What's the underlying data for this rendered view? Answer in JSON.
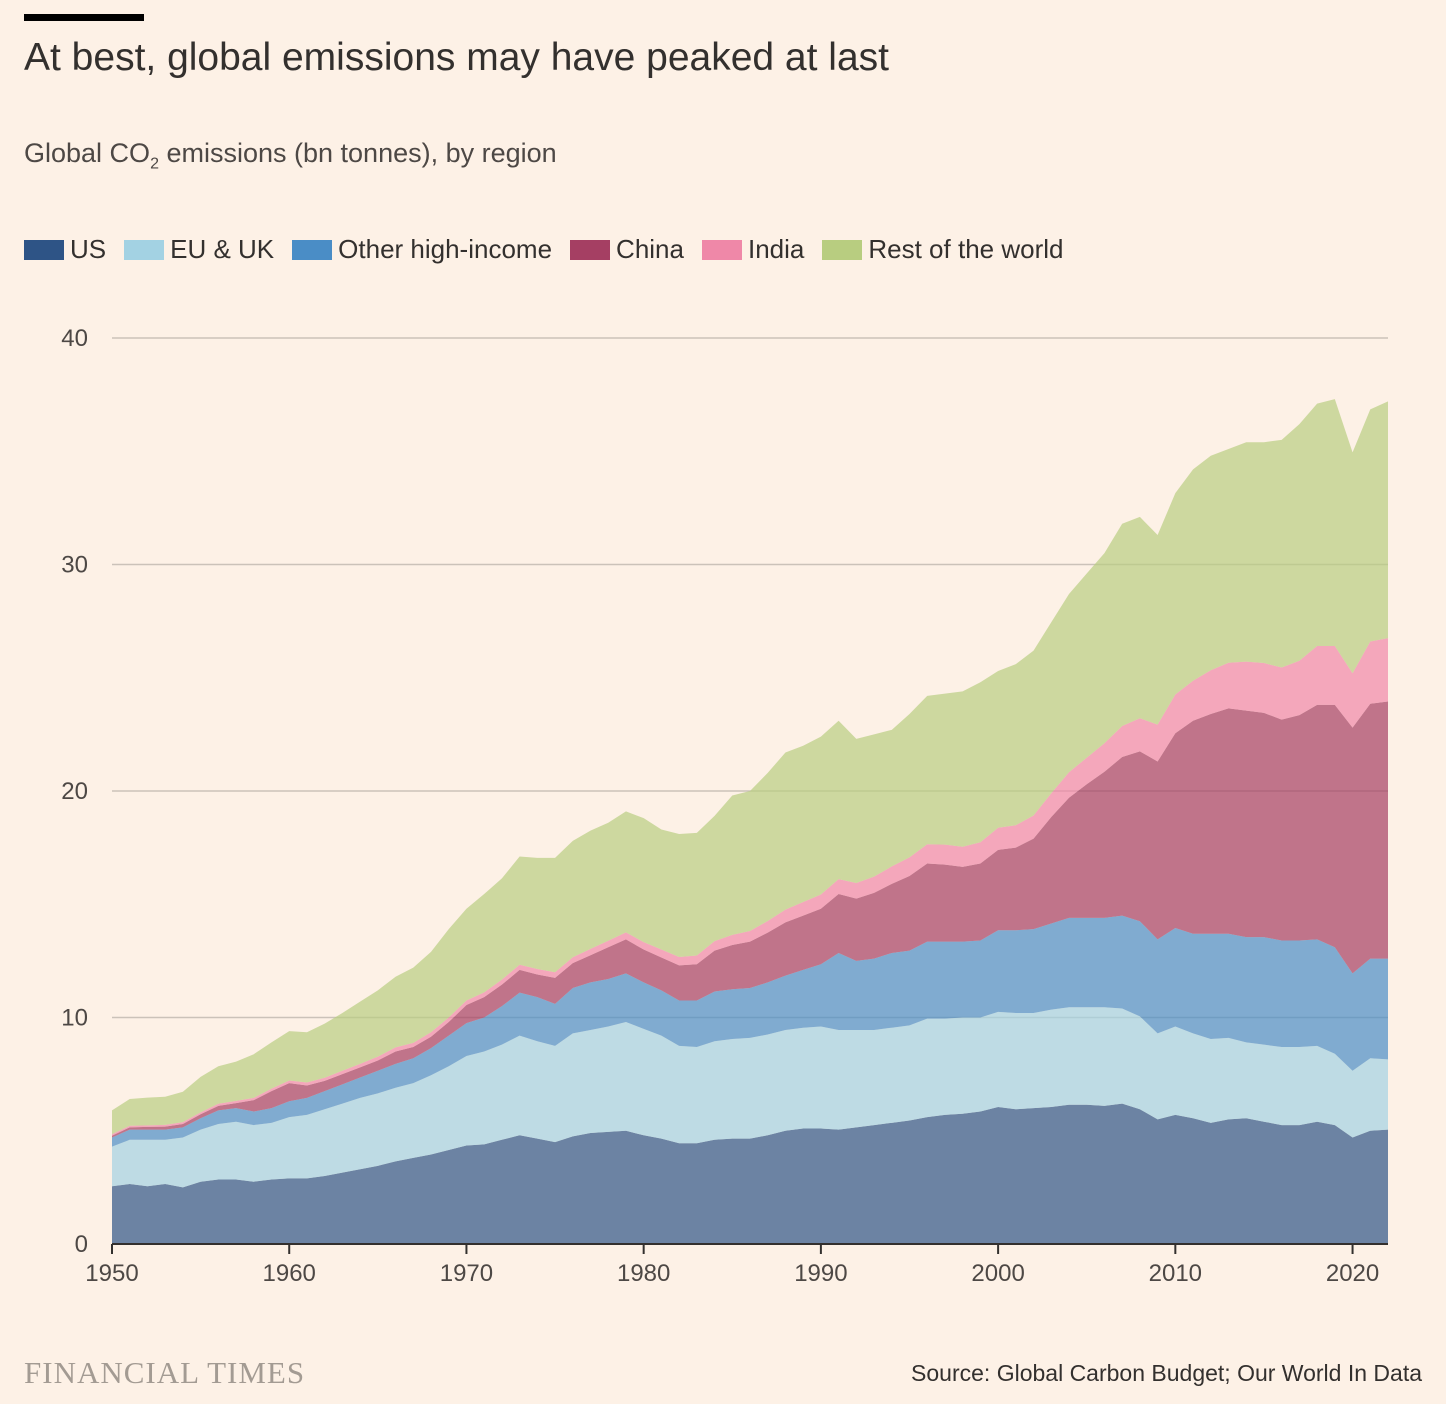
{
  "header": {
    "title": "At best, global emissions may have peaked at last",
    "subtitle_prefix": "Global CO",
    "subtitle_sub": "2",
    "subtitle_suffix": " emissions (bn tonnes), by region"
  },
  "legend": [
    {
      "label": "US",
      "color": "#2e5486"
    },
    {
      "label": "EU & UK",
      "color": "#a3d2e3"
    },
    {
      "label": "Other high-income",
      "color": "#4a8dc6"
    },
    {
      "label": "China",
      "color": "#a53f63"
    },
    {
      "label": "India",
      "color": "#ef88a8"
    },
    {
      "label": "Rest of the world",
      "color": "#b8cd80"
    }
  ],
  "footer": {
    "brand": "FINANCIAL TIMES",
    "source": "Source: Global Carbon Budget; Our World In Data"
  },
  "chart_data": {
    "type": "area",
    "stacked": true,
    "x": [
      1950,
      1951,
      1952,
      1953,
      1954,
      1955,
      1956,
      1957,
      1958,
      1959,
      1960,
      1961,
      1962,
      1963,
      1964,
      1965,
      1966,
      1967,
      1968,
      1969,
      1970,
      1971,
      1972,
      1973,
      1974,
      1975,
      1976,
      1977,
      1978,
      1979,
      1980,
      1981,
      1982,
      1983,
      1984,
      1985,
      1986,
      1987,
      1988,
      1989,
      1990,
      1991,
      1992,
      1993,
      1994,
      1995,
      1996,
      1997,
      1998,
      1999,
      2000,
      2001,
      2002,
      2003,
      2004,
      2005,
      2006,
      2007,
      2008,
      2009,
      2010,
      2011,
      2012,
      2013,
      2014,
      2015,
      2016,
      2017,
      2018,
      2019,
      2020,
      2021,
      2022
    ],
    "xticks": [
      1950,
      1960,
      1970,
      1980,
      1990,
      2000,
      2010,
      2020
    ],
    "ylim": [
      0,
      40
    ],
    "yticks": [
      0,
      10,
      20,
      30,
      40
    ],
    "grid": true,
    "series": [
      {
        "name": "US",
        "color": "#2e5486",
        "values": [
          2.55,
          2.65,
          2.55,
          2.65,
          2.5,
          2.75,
          2.85,
          2.85,
          2.75,
          2.85,
          2.9,
          2.9,
          3.0,
          3.15,
          3.3,
          3.45,
          3.65,
          3.8,
          3.95,
          4.15,
          4.35,
          4.4,
          4.6,
          4.8,
          4.65,
          4.5,
          4.75,
          4.9,
          4.95,
          5.0,
          4.8,
          4.65,
          4.45,
          4.45,
          4.6,
          4.65,
          4.65,
          4.8,
          5.0,
          5.1,
          5.1,
          5.05,
          5.15,
          5.25,
          5.35,
          5.45,
          5.6,
          5.7,
          5.75,
          5.85,
          6.05,
          5.95,
          6.0,
          6.05,
          6.15,
          6.15,
          6.1,
          6.2,
          5.95,
          5.5,
          5.7,
          5.55,
          5.35,
          5.5,
          5.55,
          5.4,
          5.25,
          5.25,
          5.4,
          5.25,
          4.7,
          5.0,
          5.05
        ]
      },
      {
        "name": "EU & UK",
        "color": "#a3d2e3",
        "values": [
          1.75,
          1.95,
          2.05,
          1.95,
          2.2,
          2.3,
          2.45,
          2.55,
          2.5,
          2.5,
          2.7,
          2.8,
          2.95,
          3.05,
          3.15,
          3.2,
          3.25,
          3.3,
          3.5,
          3.7,
          3.95,
          4.1,
          4.2,
          4.4,
          4.3,
          4.25,
          4.55,
          4.55,
          4.65,
          4.8,
          4.7,
          4.55,
          4.3,
          4.25,
          4.35,
          4.4,
          4.45,
          4.45,
          4.45,
          4.45,
          4.5,
          4.4,
          4.3,
          4.2,
          4.2,
          4.2,
          4.35,
          4.25,
          4.25,
          4.15,
          4.2,
          4.25,
          4.2,
          4.3,
          4.3,
          4.3,
          4.35,
          4.2,
          4.1,
          3.8,
          3.9,
          3.75,
          3.7,
          3.6,
          3.35,
          3.4,
          3.45,
          3.45,
          3.35,
          3.15,
          2.95,
          3.2,
          3.1
        ]
      },
      {
        "name": "Other high-income",
        "color": "#4a8dc6",
        "values": [
          0.4,
          0.45,
          0.45,
          0.45,
          0.45,
          0.5,
          0.6,
          0.6,
          0.6,
          0.65,
          0.7,
          0.75,
          0.8,
          0.85,
          0.9,
          1.0,
          1.05,
          1.1,
          1.2,
          1.35,
          1.45,
          1.5,
          1.7,
          1.9,
          1.95,
          1.85,
          2.0,
          2.1,
          2.1,
          2.15,
          2.05,
          2.0,
          2.0,
          2.05,
          2.2,
          2.2,
          2.2,
          2.3,
          2.4,
          2.55,
          2.75,
          3.4,
          3.05,
          3.15,
          3.3,
          3.3,
          3.4,
          3.4,
          3.35,
          3.4,
          3.6,
          3.65,
          3.7,
          3.8,
          3.95,
          3.95,
          3.95,
          4.1,
          4.2,
          4.15,
          4.35,
          4.4,
          4.65,
          4.6,
          4.65,
          4.75,
          4.7,
          4.7,
          4.7,
          4.7,
          4.3,
          4.4,
          4.45
        ]
      },
      {
        "name": "China",
        "color": "#a53f63",
        "values": [
          0.08,
          0.1,
          0.12,
          0.13,
          0.15,
          0.18,
          0.2,
          0.22,
          0.5,
          0.75,
          0.8,
          0.55,
          0.45,
          0.45,
          0.45,
          0.45,
          0.55,
          0.5,
          0.5,
          0.6,
          0.8,
          0.9,
          0.95,
          1.0,
          1.0,
          1.15,
          1.1,
          1.2,
          1.4,
          1.5,
          1.45,
          1.45,
          1.55,
          1.6,
          1.8,
          1.95,
          2.05,
          2.2,
          2.35,
          2.4,
          2.45,
          2.6,
          2.75,
          2.9,
          3.05,
          3.3,
          3.45,
          3.4,
          3.3,
          3.4,
          3.55,
          3.65,
          4.0,
          4.7,
          5.3,
          5.9,
          6.45,
          7.0,
          7.5,
          7.85,
          8.6,
          9.4,
          9.7,
          9.95,
          10.0,
          9.9,
          9.75,
          9.95,
          10.35,
          10.7,
          10.85,
          11.25,
          11.35
        ]
      },
      {
        "name": "India",
        "color": "#ef88a8",
        "values": [
          0.07,
          0.07,
          0.07,
          0.08,
          0.08,
          0.08,
          0.09,
          0.1,
          0.1,
          0.11,
          0.12,
          0.13,
          0.14,
          0.15,
          0.15,
          0.17,
          0.18,
          0.18,
          0.2,
          0.2,
          0.2,
          0.21,
          0.22,
          0.23,
          0.24,
          0.25,
          0.26,
          0.28,
          0.29,
          0.31,
          0.33,
          0.35,
          0.37,
          0.39,
          0.42,
          0.45,
          0.47,
          0.51,
          0.56,
          0.6,
          0.63,
          0.66,
          0.69,
          0.72,
          0.77,
          0.82,
          0.85,
          0.88,
          0.89,
          0.94,
          0.98,
          0.99,
          1.02,
          1.05,
          1.13,
          1.17,
          1.26,
          1.37,
          1.46,
          1.63,
          1.71,
          1.77,
          1.93,
          2.01,
          2.16,
          2.2,
          2.3,
          2.4,
          2.6,
          2.6,
          2.4,
          2.75,
          2.8
        ]
      },
      {
        "name": "Rest of the world",
        "color": "#b8cd80",
        "values": [
          1.05,
          1.18,
          1.22,
          1.24,
          1.34,
          1.57,
          1.66,
          1.73,
          1.93,
          2.04,
          2.18,
          2.22,
          2.39,
          2.55,
          2.75,
          2.93,
          3.12,
          3.32,
          3.55,
          3.9,
          4.05,
          4.34,
          4.47,
          4.78,
          4.91,
          5.05,
          5.14,
          5.22,
          5.21,
          5.34,
          5.47,
          5.3,
          5.43,
          5.41,
          5.53,
          6.15,
          6.18,
          6.54,
          6.94,
          6.9,
          6.97,
          6.99,
          6.36,
          6.28,
          6.03,
          6.33,
          6.55,
          6.67,
          6.86,
          7.06,
          6.92,
          7.11,
          7.28,
          7.55,
          7.87,
          8.13,
          8.39,
          8.93,
          8.89,
          8.37,
          8.89,
          9.33,
          9.47,
          9.44,
          9.69,
          9.75,
          10.05,
          10.45,
          10.7,
          10.9,
          9.75,
          10.25,
          10.45
        ]
      }
    ]
  }
}
